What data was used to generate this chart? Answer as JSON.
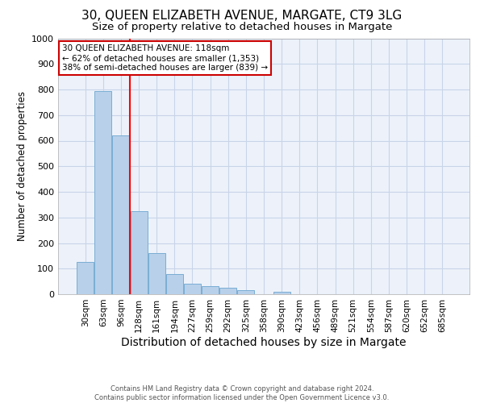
{
  "title": "30, QUEEN ELIZABETH AVENUE, MARGATE, CT9 3LG",
  "subtitle": "Size of property relative to detached houses in Margate",
  "xlabel": "Distribution of detached houses by size in Margate",
  "ylabel": "Number of detached properties",
  "categories": [
    "30sqm",
    "63sqm",
    "96sqm",
    "128sqm",
    "161sqm",
    "194sqm",
    "227sqm",
    "259sqm",
    "292sqm",
    "325sqm",
    "358sqm",
    "390sqm",
    "423sqm",
    "456sqm",
    "489sqm",
    "521sqm",
    "554sqm",
    "587sqm",
    "620sqm",
    "652sqm",
    "685sqm"
  ],
  "values": [
    125,
    795,
    620,
    325,
    160,
    80,
    40,
    30,
    25,
    15,
    0,
    8,
    0,
    0,
    0,
    0,
    0,
    0,
    0,
    0,
    0
  ],
  "bar_color": "#b8d0ea",
  "bar_edge_color": "#7aadd4",
  "red_line_index": 3,
  "annotation_text": "30 QUEEN ELIZABETH AVENUE: 118sqm\n← 62% of detached houses are smaller (1,353)\n38% of semi-detached houses are larger (839) →",
  "annotation_box_color": "#ffffff",
  "annotation_box_edge_color": "#cc0000",
  "ylim": [
    0,
    1000
  ],
  "yticks": [
    0,
    100,
    200,
    300,
    400,
    500,
    600,
    700,
    800,
    900,
    1000
  ],
  "footer": "Contains HM Land Registry data © Crown copyright and database right 2024.\nContains public sector information licensed under the Open Government Licence v3.0.",
  "grid_color": "#c8d4e8",
  "bg_color": "#edf2fa",
  "title_fontsize": 11,
  "subtitle_fontsize": 9.5,
  "tick_fontsize": 7.5,
  "ylabel_fontsize": 8.5,
  "xlabel_fontsize": 10
}
